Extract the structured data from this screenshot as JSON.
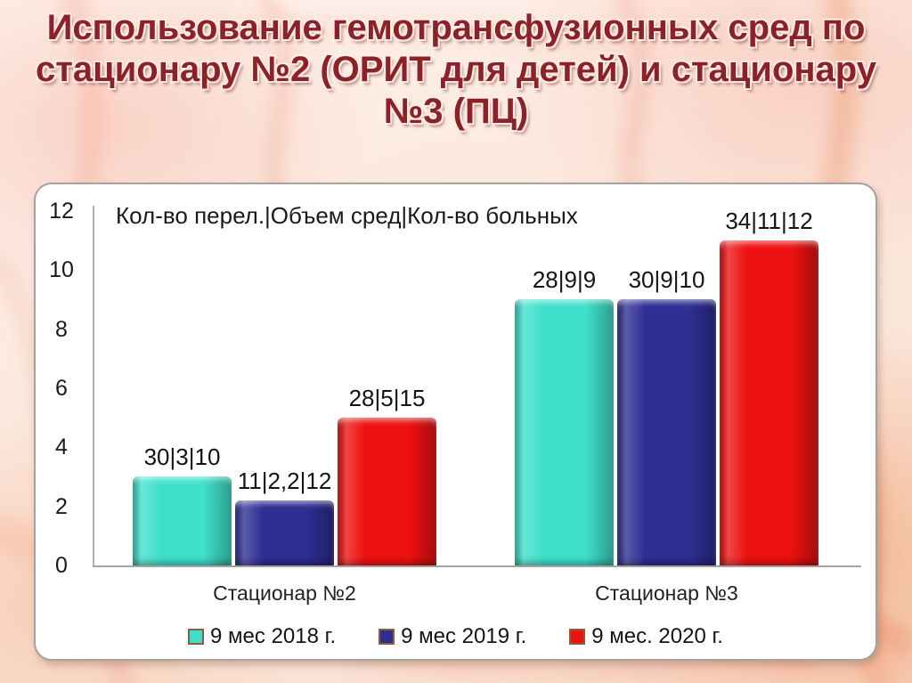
{
  "slide": {
    "title_lines": [
      "Использование гемотрансфузионных сред по",
      "стационару №2 (ОРИТ для детей) и стационару",
      "№3 (ПЦ)"
    ]
  },
  "chart_data": {
    "type": "bar",
    "annotation": "Кол-во перел.|Объем сред|Кол-во больных",
    "categories": [
      "Стационар №2",
      "Стационар №3"
    ],
    "series": [
      {
        "name": "9 мес 2018 г.",
        "color": "#3fe0cb",
        "values": [
          3,
          9
        ],
        "bar_labels": [
          "30|3|10",
          "28|9|9"
        ]
      },
      {
        "name": "9 мес 2019 г.",
        "color": "#2e2e93",
        "values": [
          2.2,
          9
        ],
        "bar_labels": [
          "11|2,2|12",
          "30|9|10"
        ]
      },
      {
        "name": "9 мес. 2020 г.",
        "color": "#ee1111",
        "values": [
          5,
          11
        ],
        "bar_labels": [
          "28|5|15",
          "34|11|12"
        ]
      }
    ],
    "y_ticks": [
      0,
      2,
      4,
      6,
      8,
      10,
      12
    ],
    "ylim": [
      0,
      12
    ],
    "grid": false,
    "legend_position": "bottom"
  },
  "colors": {
    "title_text": "#8c2227",
    "bar_teal": "#3fe0cb",
    "bar_blue": "#2e2e93",
    "bar_red": "#ee1111",
    "legend_swatch_border": "#8a5f38",
    "panel_background": "#ffffff",
    "panel_border": "#a8a29e"
  }
}
